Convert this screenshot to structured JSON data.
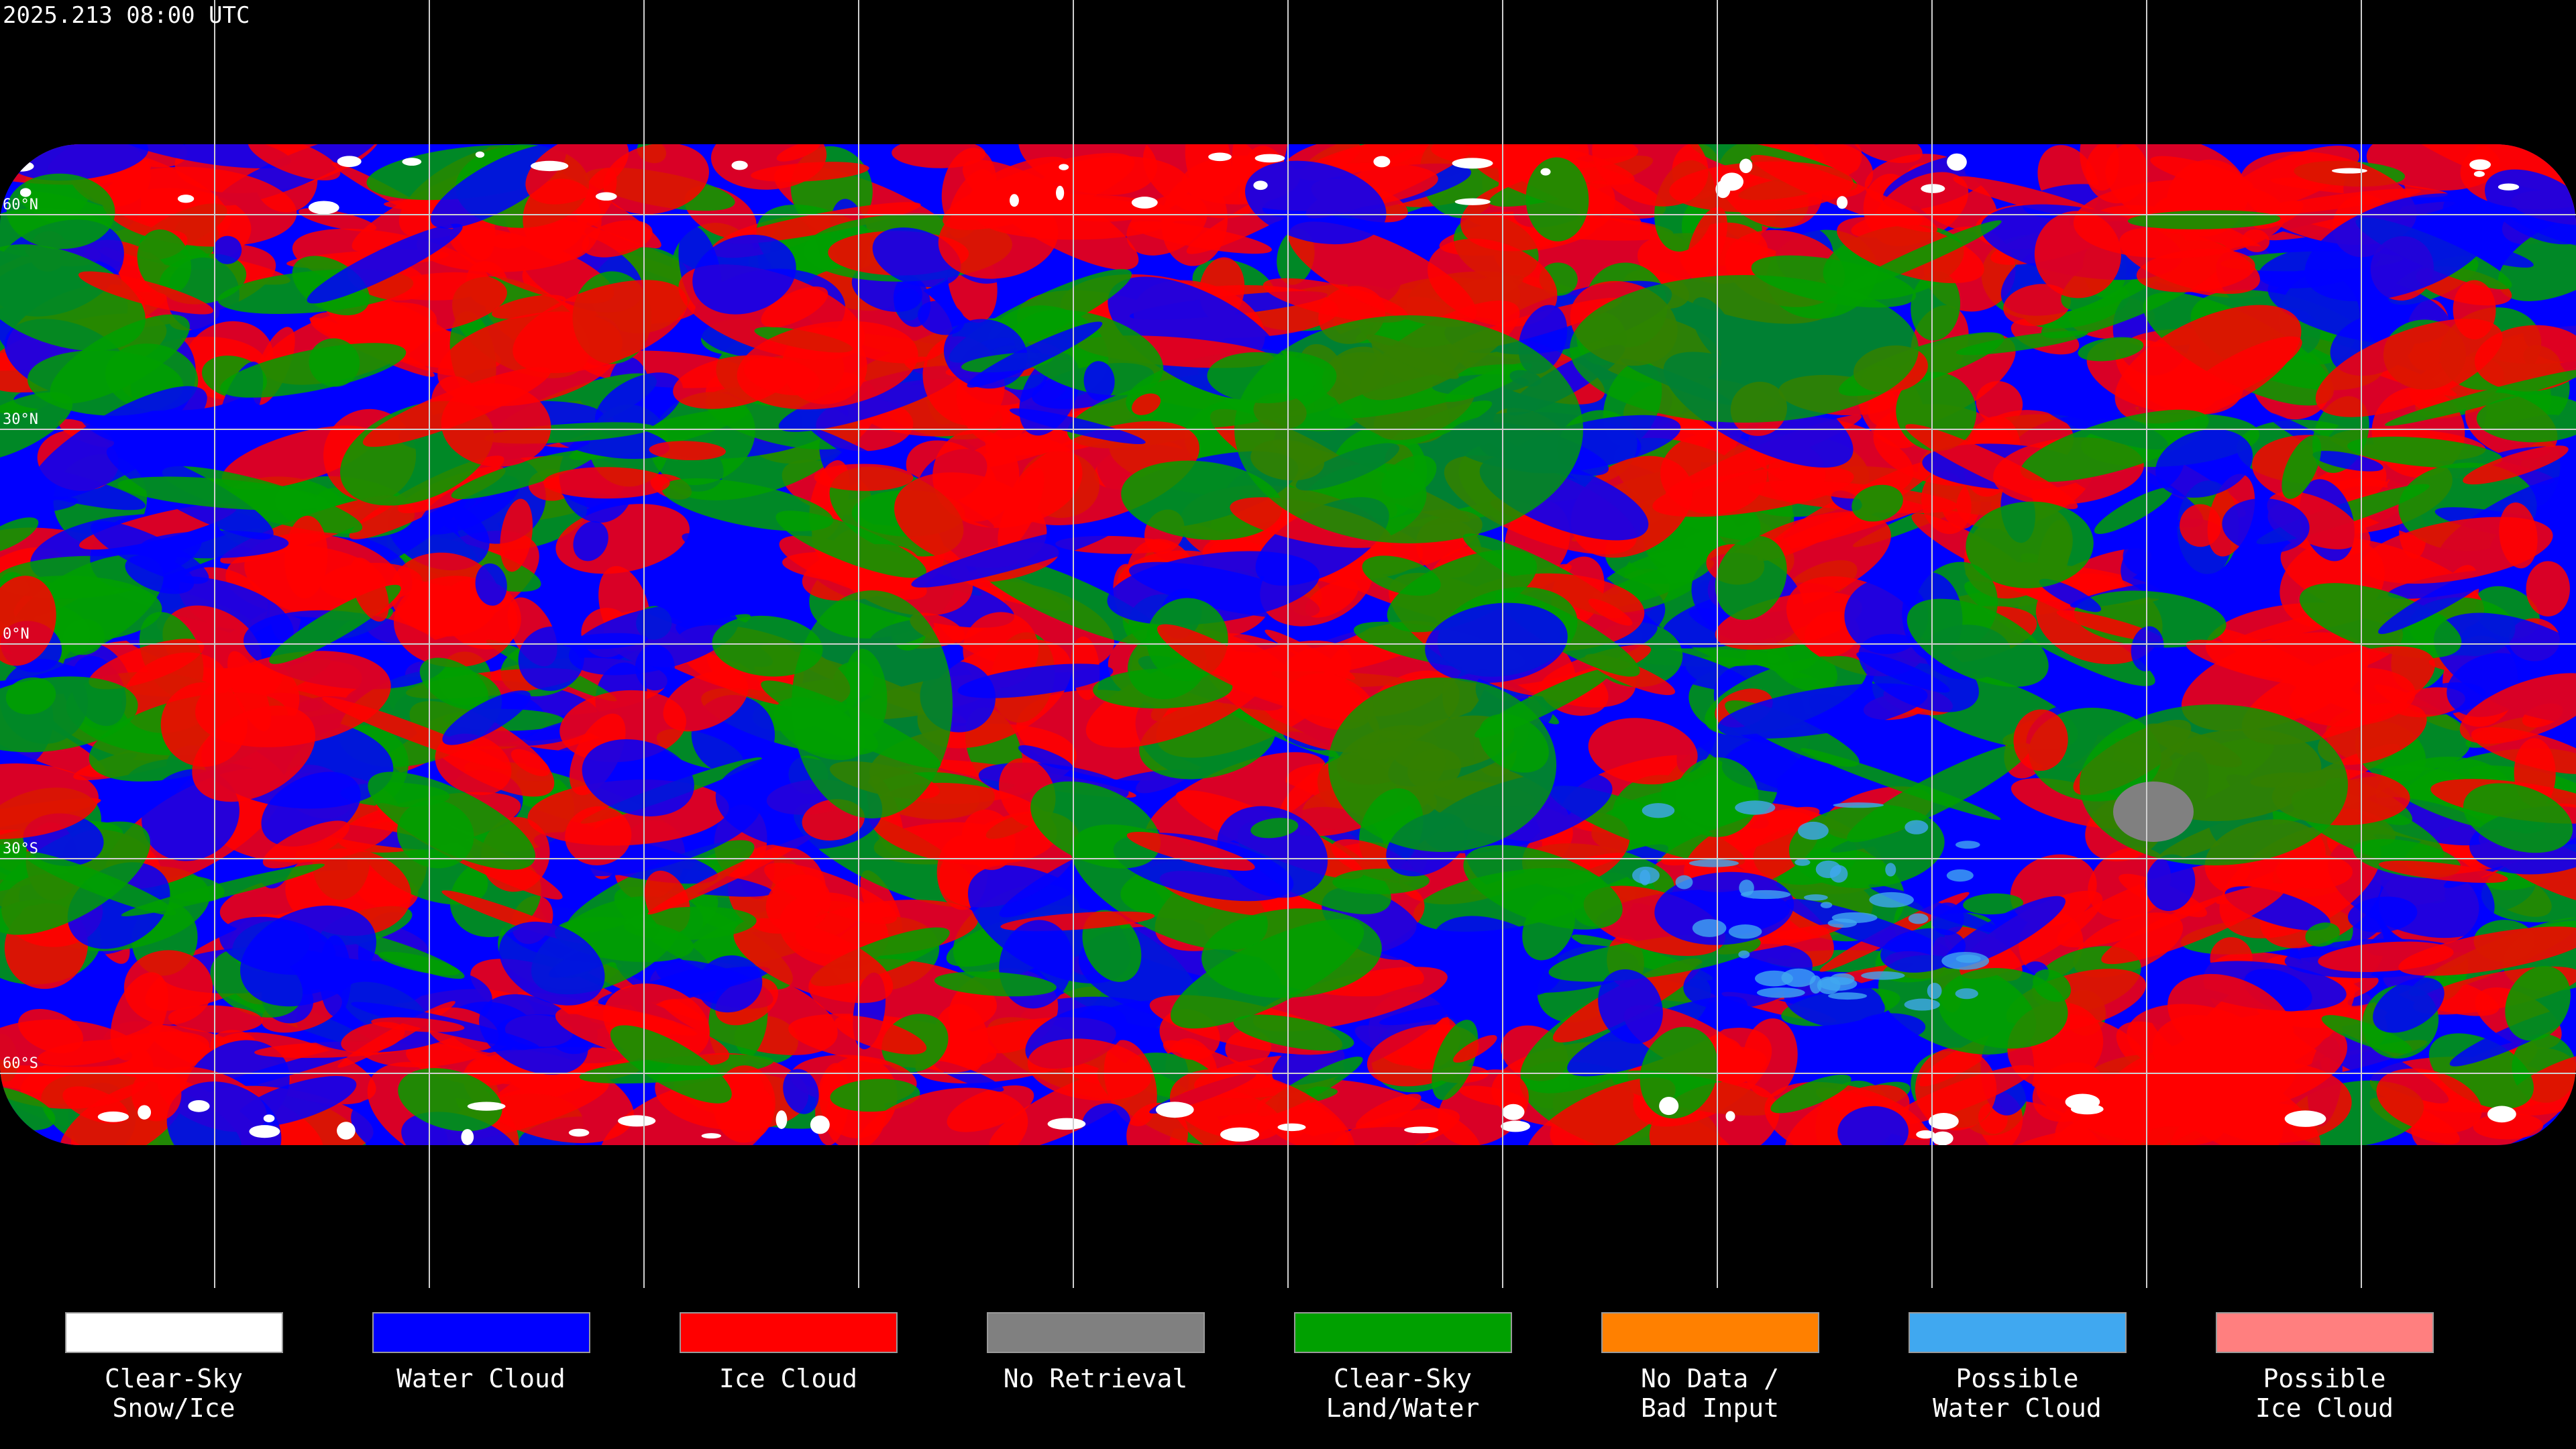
{
  "header": {
    "title": "2025.213 08:00 UTC"
  },
  "map": {
    "lat_labels": [
      "60°N",
      "30°N",
      "0°N",
      "30°S",
      "60°S"
    ]
  },
  "legend": {
    "items": [
      {
        "label": [
          "Clear-Sky",
          "Snow/Ice"
        ],
        "color": "#ffffff"
      },
      {
        "label": [
          "Water Cloud"
        ],
        "color": "#0000ff"
      },
      {
        "label": [
          "Ice Cloud"
        ],
        "color": "#ff0000"
      },
      {
        "label": [
          "No Retrieval"
        ],
        "color": "#808080"
      },
      {
        "label": [
          "Clear-Sky",
          "Land/Water"
        ],
        "color": "#00a000"
      },
      {
        "label": [
          "No Data /",
          "Bad Input"
        ],
        "color": "#ff8000"
      },
      {
        "label": [
          "Possible",
          "Water Cloud"
        ],
        "color": "#40a8f0"
      },
      {
        "label": [
          "Possible",
          "Ice Cloud"
        ],
        "color": "#ff7f7f"
      }
    ]
  }
}
